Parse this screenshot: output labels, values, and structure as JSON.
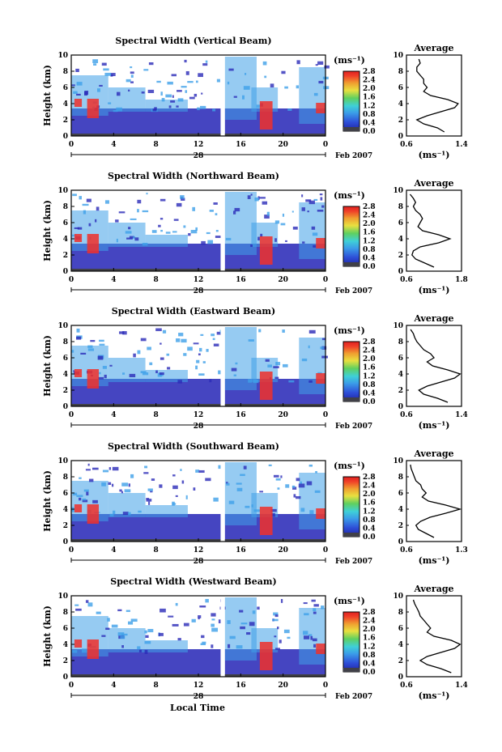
{
  "xlabel": "Local Time",
  "ylabel": "Height (km)",
  "date_day": "28",
  "date_label": "Feb 2007",
  "unit_label": "(ms⁻¹)",
  "avg_title": "Average",
  "colors": {
    "low": "#2b2bb8",
    "mid": "#3fa0e8",
    "high": "#f0302a",
    "floor": "#404048"
  },
  "chart_data": [
    {
      "type": "heatmap",
      "title": "Spectral Width (Vertical Beam)",
      "x_ticks": [
        "0",
        "4",
        "8",
        "12",
        "16",
        "20",
        "0"
      ],
      "y_ticks": [
        "0",
        "2",
        "4",
        "6",
        "8",
        "10"
      ],
      "xlim": [
        0,
        24
      ],
      "ylim": [
        0,
        10
      ],
      "colorbar_ticks": [
        "0.0",
        "0.4",
        "0.8",
        "1.2",
        "1.6",
        "2.0",
        "2.4",
        "2.8"
      ],
      "avg_xticks": [
        "0.6",
        "1.4"
      ],
      "avg_xlim": [
        0.6,
        1.4
      ],
      "profile_heights": [
        0.5,
        1,
        1.5,
        2,
        2.5,
        3,
        3.5,
        4,
        4.5,
        5,
        5.5,
        6,
        6.5,
        7,
        7.5,
        8,
        8.5,
        9,
        9.5
      ],
      "profile_values": [
        1.15,
        1.05,
        0.85,
        0.75,
        0.9,
        1.1,
        1.3,
        1.35,
        1.2,
        0.95,
        0.85,
        0.9,
        0.85,
        0.85,
        0.8,
        0.75,
        0.75,
        0.8,
        0.78
      ]
    },
    {
      "type": "heatmap",
      "title": "Spectral Width (Northward Beam)",
      "x_ticks": [
        "0",
        "4",
        "8",
        "12",
        "16",
        "20",
        "0"
      ],
      "y_ticks": [
        "0",
        "2",
        "4",
        "6",
        "8",
        "10"
      ],
      "xlim": [
        0,
        24
      ],
      "ylim": [
        0,
        10
      ],
      "colorbar_ticks": [
        "0.0",
        "0.4",
        "0.8",
        "1.2",
        "1.6",
        "2.0",
        "2.4",
        "2.8"
      ],
      "avg_xticks": [
        "0.6",
        "1.8"
      ],
      "avg_xlim": [
        0.6,
        1.8
      ],
      "profile_heights": [
        0.5,
        1,
        1.5,
        2,
        2.5,
        3,
        3.5,
        4,
        4.5,
        5,
        5.5,
        6,
        6.5,
        7,
        7.5,
        8,
        8.5,
        9,
        9.5
      ],
      "profile_values": [
        1.2,
        1.0,
        0.8,
        0.72,
        0.75,
        0.9,
        1.3,
        1.55,
        1.3,
        0.95,
        0.85,
        0.9,
        0.95,
        0.9,
        0.8,
        0.75,
        0.8,
        0.75,
        0.68
      ]
    },
    {
      "type": "heatmap",
      "title": "Spectral Width (Eastward Beam)",
      "x_ticks": [
        "0",
        "4",
        "8",
        "12",
        "16",
        "20",
        "0"
      ],
      "y_ticks": [
        "0",
        "2",
        "4",
        "6",
        "8",
        "10"
      ],
      "xlim": [
        0,
        24
      ],
      "ylim": [
        0,
        10
      ],
      "colorbar_ticks": [
        "0.0",
        "0.4",
        "0.8",
        "1.2",
        "1.6",
        "2.0",
        "2.4",
        "2.8"
      ],
      "avg_xticks": [
        "0.6",
        "1.4"
      ],
      "avg_xlim": [
        0.6,
        1.4
      ],
      "profile_heights": [
        0.5,
        1,
        1.5,
        2,
        2.5,
        3,
        3.5,
        4,
        4.5,
        5,
        5.5,
        6,
        6.5,
        7,
        7.5,
        8,
        8.5,
        9,
        9.5
      ],
      "profile_values": [
        1.2,
        1.05,
        0.85,
        0.78,
        0.9,
        1.1,
        1.3,
        1.38,
        1.2,
        0.98,
        0.9,
        1.0,
        0.95,
        0.85,
        0.8,
        0.75,
        0.72,
        0.7,
        0.66
      ]
    },
    {
      "type": "heatmap",
      "title": "Spectral Width (Southward Beam)",
      "x_ticks": [
        "0",
        "4",
        "8",
        "12",
        "16",
        "20",
        "0"
      ],
      "y_ticks": [
        "0",
        "2",
        "4",
        "6",
        "8",
        "10"
      ],
      "xlim": [
        0,
        24
      ],
      "ylim": [
        0,
        10
      ],
      "colorbar_ticks": [
        "0.0",
        "0.4",
        "0.8",
        "1.2",
        "1.6",
        "2.0",
        "2.4",
        "2.8"
      ],
      "avg_xticks": [
        "0.6",
        "1.3"
      ],
      "avg_xlim": [
        0.6,
        1.3
      ],
      "profile_heights": [
        0.5,
        1,
        1.5,
        2,
        2.5,
        3,
        3.5,
        4,
        4.5,
        5,
        5.5,
        6,
        6.5,
        7,
        7.5,
        8,
        8.5,
        9,
        9.5
      ],
      "profile_values": [
        0.95,
        0.85,
        0.75,
        0.72,
        0.78,
        0.9,
        1.1,
        1.28,
        1.1,
        0.88,
        0.8,
        0.85,
        0.8,
        0.78,
        0.72,
        0.7,
        0.68,
        0.66,
        0.65
      ]
    },
    {
      "type": "heatmap",
      "title": "Spectral Width (Westward Beam)",
      "x_ticks": [
        "0",
        "4",
        "8",
        "12",
        "16",
        "20",
        "0"
      ],
      "y_ticks": [
        "0",
        "2",
        "4",
        "6",
        "8",
        "10"
      ],
      "xlim": [
        0,
        24
      ],
      "ylim": [
        0,
        10
      ],
      "colorbar_ticks": [
        "0.0",
        "0.4",
        "0.8",
        "1.2",
        "1.6",
        "2.0",
        "2.4",
        "2.8"
      ],
      "avg_xticks": [
        "0.6",
        "1.4"
      ],
      "avg_xlim": [
        0.6,
        1.4
      ],
      "profile_heights": [
        0.5,
        1,
        1.5,
        2,
        2.5,
        3,
        3.5,
        4,
        4.5,
        5,
        5.5,
        6,
        6.5,
        7,
        7.5,
        8,
        8.5,
        9,
        9.5
      ],
      "profile_values": [
        1.25,
        1.1,
        0.9,
        0.8,
        0.9,
        1.1,
        1.3,
        1.38,
        1.25,
        1.0,
        0.9,
        0.95,
        0.9,
        0.85,
        0.8,
        0.78,
        0.75,
        0.72,
        0.7
      ]
    }
  ]
}
